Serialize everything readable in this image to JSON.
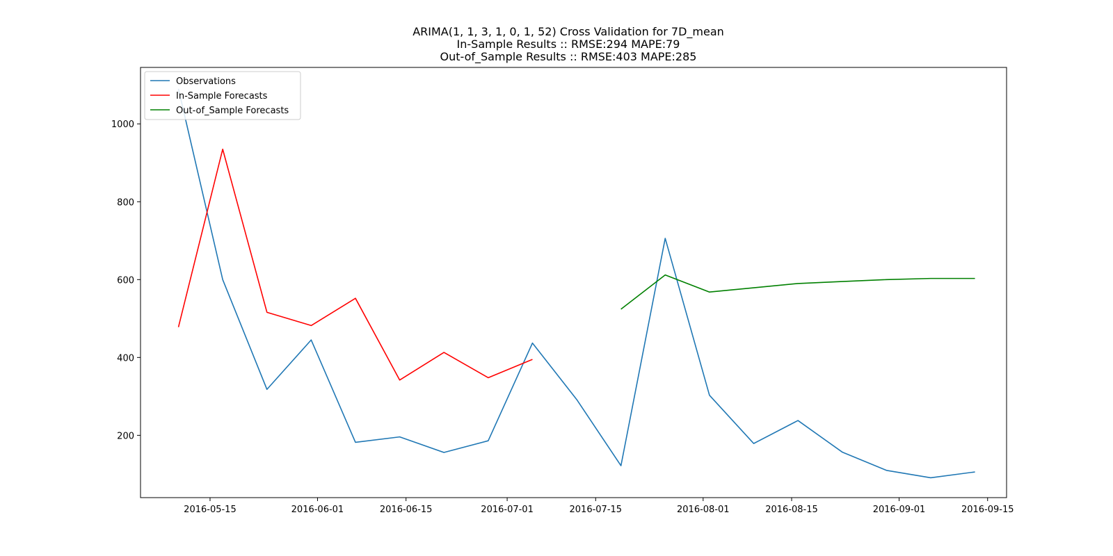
{
  "chart_data": {
    "type": "line",
    "title_lines": [
      "ARIMA(1, 1, 3, 1, 0, 1, 52) Cross Validation for 7D_mean",
      "In-Sample Results :: RMSE:294 MAPE:79",
      "Out-of_Sample Results :: RMSE:403 MAPE:285"
    ],
    "xlabel": "",
    "ylabel": "",
    "x_axis": {
      "kind": "date",
      "range": [
        "2016-05-04",
        "2016-09-18"
      ],
      "ticks": [
        "2016-05-15",
        "2016-06-01",
        "2016-06-15",
        "2016-07-01",
        "2016-07-15",
        "2016-08-01",
        "2016-08-15",
        "2016-09-01",
        "2016-09-15"
      ]
    },
    "y_axis": {
      "range": [
        40,
        1145
      ],
      "ticks": [
        200,
        400,
        600,
        800,
        1000
      ]
    },
    "grid": false,
    "legend_position": "upper-left",
    "series": [
      {
        "name": "Observations",
        "color": "#1f77b4",
        "points": [
          {
            "x": "2016-05-10",
            "y": 1090
          },
          {
            "x": "2016-05-17",
            "y": 600
          },
          {
            "x": "2016-05-24",
            "y": 318
          },
          {
            "x": "2016-05-31",
            "y": 445
          },
          {
            "x": "2016-06-07",
            "y": 182
          },
          {
            "x": "2016-06-14",
            "y": 196
          },
          {
            "x": "2016-06-21",
            "y": 156
          },
          {
            "x": "2016-06-28",
            "y": 186
          },
          {
            "x": "2016-07-05",
            "y": 437
          },
          {
            "x": "2016-07-12",
            "y": 292
          },
          {
            "x": "2016-07-19",
            "y": 122
          },
          {
            "x": "2016-07-26",
            "y": 706
          },
          {
            "x": "2016-08-02",
            "y": 303
          },
          {
            "x": "2016-08-09",
            "y": 179
          },
          {
            "x": "2016-08-16",
            "y": 238
          },
          {
            "x": "2016-08-23",
            "y": 157
          },
          {
            "x": "2016-08-30",
            "y": 110
          },
          {
            "x": "2016-09-06",
            "y": 91
          },
          {
            "x": "2016-09-13",
            "y": 106
          }
        ]
      },
      {
        "name": "In-Sample Forecasts",
        "color": "#ff0000",
        "points": [
          {
            "x": "2016-05-10",
            "y": 478
          },
          {
            "x": "2016-05-17",
            "y": 935
          },
          {
            "x": "2016-05-24",
            "y": 516
          },
          {
            "x": "2016-05-31",
            "y": 482
          },
          {
            "x": "2016-06-07",
            "y": 552
          },
          {
            "x": "2016-06-14",
            "y": 342
          },
          {
            "x": "2016-06-21",
            "y": 413
          },
          {
            "x": "2016-06-28",
            "y": 348
          },
          {
            "x": "2016-07-05",
            "y": 395
          }
        ]
      },
      {
        "name": "Out-of_Sample Forecasts",
        "color": "#008000",
        "points": [
          {
            "x": "2016-07-19",
            "y": 524
          },
          {
            "x": "2016-07-26",
            "y": 612
          },
          {
            "x": "2016-08-02",
            "y": 568
          },
          {
            "x": "2016-08-09",
            "y": 579
          },
          {
            "x": "2016-08-16",
            "y": 590
          },
          {
            "x": "2016-08-23",
            "y": 595
          },
          {
            "x": "2016-08-30",
            "y": 600
          },
          {
            "x": "2016-09-06",
            "y": 603
          },
          {
            "x": "2016-09-13",
            "y": 603
          }
        ]
      }
    ]
  }
}
